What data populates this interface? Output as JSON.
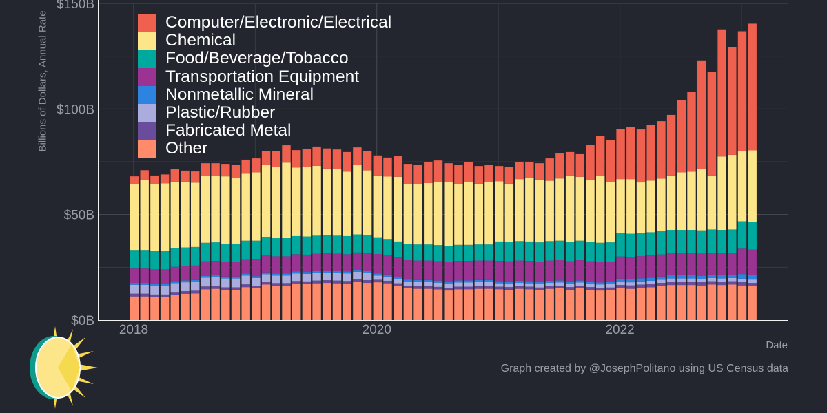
{
  "chart_data": {
    "type": "bar",
    "stacked": true,
    "title": "",
    "xlabel": "Date",
    "ylabel": "Billions of Dollars, Annual Rate",
    "ylim": [
      0,
      150
    ],
    "yticks": [
      0,
      50,
      100,
      150
    ],
    "ytick_labels": [
      "$0B",
      "$50B",
      "$100B",
      "$150B"
    ],
    "xticks": [
      "2018",
      "2020",
      "2022"
    ],
    "x_start": "2018-01",
    "x_end": "2023-02",
    "frequency": "monthly",
    "grid": true,
    "legend_position": "top-left",
    "series": [
      {
        "name": "Other",
        "color": "#ff8b6a",
        "values": [
          11.2,
          11.2,
          10.8,
          10.8,
          12,
          12.4,
          12.6,
          14.6,
          14.8,
          14.2,
          14.2,
          15.6,
          15,
          16.8,
          16.2,
          16.2,
          17.2,
          17,
          17.4,
          17.6,
          17.4,
          17.2,
          18,
          17.6,
          17.9,
          17.4,
          16.2,
          15,
          14.8,
          14.8,
          14.5,
          14,
          14.6,
          14.6,
          14.8,
          14.8,
          14.6,
          14.4,
          14.8,
          14.6,
          14.2,
          14.8,
          15,
          14.4,
          15,
          14.4,
          14,
          14.2,
          15,
          14.8,
          15.2,
          15.5,
          16,
          16.6,
          16.6,
          16.6,
          16.4,
          16.8,
          16.6,
          16.8,
          16.4,
          16
        ]
      },
      {
        "name": "Fabricated Metal",
        "color": "#6a4c9c",
        "values": [
          1.3,
          1.3,
          1.3,
          1.3,
          1.3,
          1.3,
          1.3,
          1.3,
          1.3,
          1.3,
          1.3,
          1.3,
          1.3,
          1.3,
          1.3,
          1.3,
          1.3,
          1.3,
          1.3,
          1.3,
          1.3,
          1.3,
          1.3,
          1.3,
          1.2,
          1.2,
          1.2,
          1.2,
          1.2,
          1.2,
          1.2,
          1.2,
          1.2,
          1.2,
          1.2,
          1.2,
          1.2,
          1.2,
          1.2,
          1.2,
          1.2,
          1.2,
          1.2,
          1.2,
          1.2,
          1.2,
          1.2,
          1.2,
          1.6,
          1.6,
          1.6,
          1.6,
          1.6,
          1.6,
          1.6,
          1.6,
          1.6,
          1.6,
          1.6,
          1.6,
          1.6,
          1.6
        ]
      },
      {
        "name": "Plastic/Rubber",
        "color": "#a9acdc",
        "values": [
          4.2,
          4.2,
          4.2,
          4.2,
          4.2,
          4.2,
          4.2,
          4.2,
          4.2,
          4.2,
          4.2,
          4.2,
          3.6,
          3.6,
          3.6,
          3.6,
          3.6,
          3.6,
          3.6,
          3.6,
          3.6,
          3.6,
          3.6,
          3.6,
          2,
          2,
          2,
          2,
          2,
          2,
          2,
          2,
          2,
          2,
          2,
          2,
          1.6,
          1.6,
          1.6,
          1.6,
          1.6,
          1.6,
          1.6,
          1.6,
          1.6,
          1.6,
          1.6,
          1.6,
          1.5,
          1.5,
          1.5,
          1.5,
          1.5,
          1.5,
          1.5,
          1.5,
          1.5,
          1.5,
          1.5,
          1.5,
          1.6,
          1.6
        ]
      },
      {
        "name": "Nonmetallic Mineral",
        "color": "#2d83e0",
        "values": [
          0.9,
          0.9,
          0.9,
          0.9,
          0.9,
          0.9,
          0.9,
          0.9,
          0.9,
          0.9,
          0.9,
          0.9,
          0.9,
          0.9,
          0.9,
          0.9,
          0.9,
          0.9,
          0.9,
          0.9,
          0.9,
          0.9,
          0.9,
          0.9,
          1,
          1,
          1,
          1,
          1,
          1,
          1,
          1,
          1,
          1,
          1,
          1,
          1,
          1,
          1,
          1,
          1,
          1,
          1,
          1,
          1,
          1,
          1,
          1,
          1.5,
          1.5,
          1.5,
          1.5,
          1.5,
          1.5,
          1.5,
          1.5,
          1.5,
          1.5,
          1.5,
          1.5,
          2.2,
          2.2
        ]
      },
      {
        "name": "Transportation Equipment",
        "color": "#9a3391",
        "values": [
          6.8,
          6.8,
          6.8,
          6.8,
          6.8,
          6.8,
          6.8,
          6.8,
          6.8,
          6.8,
          6.8,
          6.8,
          8.2,
          8.2,
          8.2,
          8.2,
          8.2,
          8.2,
          8.2,
          8.2,
          8.2,
          8.2,
          8.2,
          8.2,
          9.2,
          9.2,
          9.2,
          9.2,
          9.2,
          9.2,
          9.2,
          9.2,
          9.2,
          9.2,
          9.2,
          9.2,
          9.6,
          9.6,
          9.6,
          9.6,
          9.6,
          9.6,
          9.6,
          9.6,
          9.6,
          9.6,
          9.6,
          9.6,
          10.5,
          10.5,
          10.5,
          10.5,
          10.5,
          10.5,
          10.5,
          10.5,
          10.5,
          10.5,
          10.5,
          10.5,
          12,
          12
        ]
      },
      {
        "name": "Food/Beverage/Tobacco",
        "color": "#00a99d",
        "values": [
          8.8,
          8.8,
          8.8,
          8.8,
          8.8,
          8.8,
          8.8,
          8.8,
          8.8,
          8.8,
          8.8,
          8.8,
          8.6,
          8.6,
          8.6,
          8.6,
          8.6,
          8.6,
          8.6,
          8.6,
          8.6,
          8.6,
          8.6,
          8.6,
          7.6,
          7.6,
          7.6,
          7.6,
          7.6,
          7.6,
          7.6,
          7.6,
          7.6,
          7.6,
          7.6,
          7.6,
          9.2,
          9.2,
          9.2,
          9.2,
          9.2,
          9.2,
          9.2,
          9.2,
          9.2,
          9.2,
          9.2,
          9.2,
          11,
          11,
          11,
          11,
          11,
          11,
          11,
          11,
          11,
          11,
          11,
          11,
          13,
          13
        ]
      },
      {
        "name": "Chemical",
        "color": "#fde68a",
        "values": [
          31.1,
          33.4,
          31.5,
          32,
          31.6,
          31.2,
          30.5,
          31.6,
          31.4,
          31.9,
          31.2,
          31.7,
          32.4,
          34,
          33.8,
          35.8,
          32.5,
          33.1,
          33.1,
          31.6,
          31.7,
          30.5,
          32.8,
          30.7,
          29.6,
          29.6,
          30.7,
          28.3,
          28.6,
          29.1,
          30,
          30.5,
          28.8,
          29.9,
          28.8,
          29.7,
          28.6,
          27.6,
          29.4,
          30.2,
          29.8,
          28.6,
          29.5,
          31.5,
          30.3,
          29.5,
          31.6,
          28.7,
          25.7,
          25.9,
          23.9,
          24.5,
          24.9,
          25.8,
          27.3,
          27.6,
          29,
          25.6,
          34.8,
          35.4,
          33.1,
          34
        ]
      },
      {
        "name": "Computer/Electronic/Electrical",
        "color": "#f0604e",
        "values": [
          3.8,
          4.4,
          4.2,
          4.2,
          5.8,
          5.2,
          5.3,
          6.1,
          6.1,
          5.9,
          6.3,
          6.7,
          6.6,
          6.8,
          7.4,
          8.2,
          8.2,
          8.5,
          9.1,
          9.5,
          9.1,
          9.3,
          8.4,
          9.3,
          9.5,
          9,
          9.7,
          9.7,
          9,
          9.8,
          10.1,
          8.8,
          9,
          9.2,
          8.4,
          8.2,
          7.2,
          7.8,
          7.9,
          7.6,
          7.7,
          10.6,
          11.8,
          11.1,
          10.7,
          16.6,
          19.2,
          19.9,
          23.8,
          24.5,
          25.1,
          26.2,
          27.2,
          28.7,
          34.3,
          37.9,
          51.5,
          49.2,
          60.2,
          51.1,
          56.9,
          60
        ]
      }
    ]
  },
  "legend_order": [
    "Computer/Electronic/Electrical",
    "Chemical",
    "Food/Beverage/Tobacco",
    "Transportation Equipment",
    "Nonmetallic Mineral",
    "Plastic/Rubber",
    "Fabricated Metal",
    "Other"
  ],
  "legend": [
    {
      "label": "Computer/Electronic/Electrical",
      "color": "#f0604e"
    },
    {
      "label": "Chemical",
      "color": "#fde68a"
    },
    {
      "label": "Food/Beverage/Tobacco",
      "color": "#00a99d"
    },
    {
      "label": "Transportation Equipment",
      "color": "#9a3391"
    },
    {
      "label": "Nonmetallic Mineral",
      "color": "#2d83e0"
    },
    {
      "label": "Plastic/Rubber",
      "color": "#a9acdc"
    },
    {
      "label": "Fabricated Metal",
      "color": "#6a4c9c"
    },
    {
      "label": "Other",
      "color": "#ff8b6a"
    }
  ],
  "credit": "Graph created by @JosephPolitano using US Census data",
  "logo": "sun-logo-icon"
}
